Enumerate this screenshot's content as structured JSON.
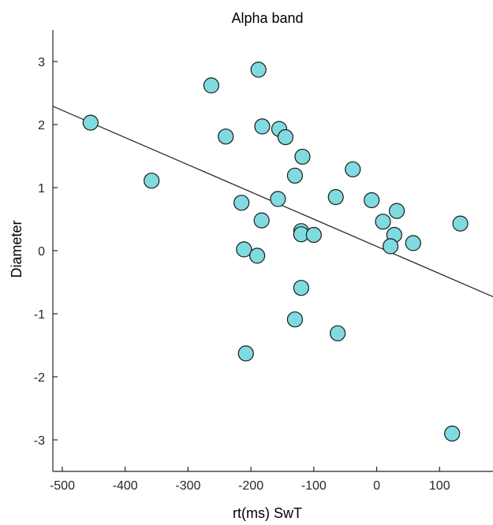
{
  "chart_data": {
    "type": "scatter",
    "title": "Alpha band",
    "xlabel": "rt(ms) SwT",
    "ylabel": "Diameter",
    "xlim": [
      -515,
      185
    ],
    "ylim": [
      -3.5,
      3.5
    ],
    "xticks": [
      -500,
      -400,
      -300,
      -200,
      -100,
      0,
      100
    ],
    "yticks": [
      -3,
      -2,
      -1,
      0,
      1,
      2,
      3
    ],
    "xtick_labels": [
      "-500",
      "-400",
      "-300",
      "-200",
      "-100",
      "0",
      "100"
    ],
    "ytick_labels": [
      "-3",
      "-2",
      "-1",
      "0",
      "1",
      "2",
      "3"
    ],
    "grid": false,
    "marker_color": "#7fdbe0",
    "marker_edge_color": "#1a1a1a",
    "fit_line": {
      "x": [
        -515,
        185
      ],
      "y": [
        2.29,
        -0.73
      ]
    },
    "points": [
      {
        "x": -455,
        "y": 2.03
      },
      {
        "x": -358,
        "y": 1.11
      },
      {
        "x": -263,
        "y": 2.62
      },
      {
        "x": -240,
        "y": 1.81
      },
      {
        "x": -188,
        "y": 2.87
      },
      {
        "x": -182,
        "y": 1.97
      },
      {
        "x": -155,
        "y": 1.93
      },
      {
        "x": -145,
        "y": 1.8
      },
      {
        "x": -118,
        "y": 1.49
      },
      {
        "x": -130,
        "y": 1.19
      },
      {
        "x": -157,
        "y": 0.82
      },
      {
        "x": -215,
        "y": 0.76
      },
      {
        "x": -183,
        "y": 0.48
      },
      {
        "x": -120,
        "y": 0.31
      },
      {
        "x": -120,
        "y": 0.26
      },
      {
        "x": -100,
        "y": 0.25
      },
      {
        "x": -211,
        "y": 0.02
      },
      {
        "x": -190,
        "y": -0.08
      },
      {
        "x": -120,
        "y": -0.59
      },
      {
        "x": -130,
        "y": -1.09
      },
      {
        "x": -208,
        "y": -1.63
      },
      {
        "x": -65,
        "y": 0.85
      },
      {
        "x": -62,
        "y": -1.31
      },
      {
        "x": -38,
        "y": 1.29
      },
      {
        "x": -8,
        "y": 0.8
      },
      {
        "x": 10,
        "y": 0.46
      },
      {
        "x": 32,
        "y": 0.63
      },
      {
        "x": 28,
        "y": 0.25
      },
      {
        "x": 22,
        "y": 0.07
      },
      {
        "x": 58,
        "y": 0.12
      },
      {
        "x": 133,
        "y": 0.43
      },
      {
        "x": 120,
        "y": -2.9
      }
    ]
  }
}
